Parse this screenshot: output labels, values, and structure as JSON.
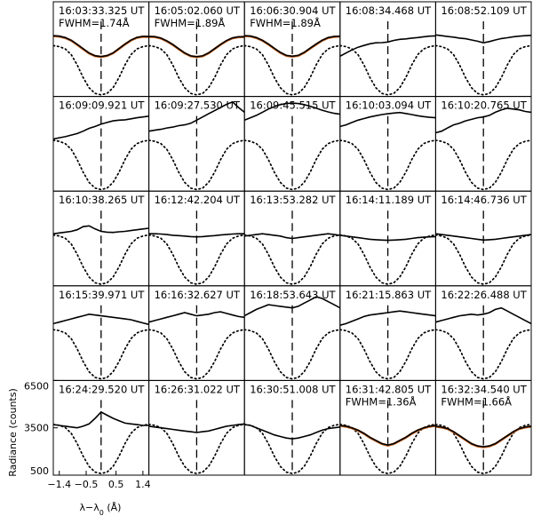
{
  "chart_data": {
    "type": "line",
    "layout": "grid-5x5",
    "xlabel": "λ−λ",
    "xlabel_sub": "0",
    "xlabel_unit": " (Å)",
    "ylabel": "Radiance (counts)",
    "xlim": [
      -1.6,
      1.6
    ],
    "ylim": [
      500,
      6500
    ],
    "xtick_labels": [
      "−1.4",
      "−0.5",
      "0.5",
      "1.4"
    ],
    "xtick_values": [
      -1.4,
      -0.5,
      0.5,
      1.4
    ],
    "ytick_labels": [
      "6500",
      "3500",
      "500"
    ],
    "ytick_values": [
      6500,
      3500,
      500
    ],
    "line_center": 0,
    "colors": {
      "observed": "#000000",
      "fit": "#c8641e",
      "reference": "#000000",
      "center": "#000000"
    },
    "reference_profile": {
      "x": [
        -1.6,
        -1.4,
        -1.2,
        -1.0,
        -0.8,
        -0.6,
        -0.4,
        -0.2,
        0.0,
        0.2,
        0.4,
        0.6,
        0.8,
        1.0,
        1.2,
        1.4,
        1.6
      ],
      "y": [
        3720,
        3660,
        3510,
        3150,
        2500,
        1700,
        1050,
        690,
        600,
        690,
        1050,
        1700,
        2500,
        3150,
        3510,
        3660,
        3720
      ]
    },
    "panels": [
      {
        "time": "16:03:33.325 UT",
        "fwhm": "FWHM=1.74Å",
        "fit": true,
        "x": [
          -1.6,
          -1.4,
          -1.2,
          -1.0,
          -0.8,
          -0.6,
          -0.4,
          -0.2,
          0.0,
          0.2,
          0.4,
          0.6,
          0.8,
          1.0,
          1.2,
          1.4,
          1.6
        ],
        "y": [
          4350,
          4320,
          4230,
          4060,
          3800,
          3520,
          3250,
          3080,
          3030,
          3090,
          3260,
          3540,
          3820,
          4070,
          4240,
          4310,
          4300
        ]
      },
      {
        "time": "16:05:02.060 UT",
        "fwhm": "FWHM=1.89Å",
        "fit": true,
        "x": [
          -1.6,
          -1.4,
          -1.2,
          -1.0,
          -0.8,
          -0.6,
          -0.4,
          -0.2,
          0.0,
          0.2,
          0.4,
          0.6,
          0.8,
          1.0,
          1.2,
          1.4,
          1.6
        ],
        "y": [
          4300,
          4290,
          4200,
          4020,
          3790,
          3520,
          3260,
          3070,
          3020,
          3070,
          3260,
          3530,
          3800,
          4040,
          4210,
          4280,
          4290
        ]
      },
      {
        "time": "16:06:30.904 UT",
        "fwhm": "FWHM=1.89Å",
        "fit": true,
        "x": [
          -1.6,
          -1.4,
          -1.2,
          -1.0,
          -0.8,
          -0.6,
          -0.4,
          -0.2,
          0.0,
          0.2,
          0.4,
          0.6,
          0.8,
          1.0,
          1.2,
          1.4,
          1.6
        ],
        "y": [
          4350,
          4330,
          4230,
          4060,
          3820,
          3550,
          3290,
          3100,
          3050,
          3100,
          3290,
          3560,
          3820,
          4060,
          4230,
          4300,
          4320
        ]
      },
      {
        "time": "16:08:34.468 UT",
        "fwhm": "",
        "fit": false,
        "x": [
          -1.6,
          -1.4,
          -1.2,
          -1.0,
          -0.8,
          -0.6,
          -0.4,
          -0.2,
          0.0,
          0.2,
          0.4,
          0.6,
          0.8,
          1.0,
          1.2,
          1.4,
          1.6
        ],
        "y": [
          3050,
          3250,
          3450,
          3620,
          3730,
          3840,
          3900,
          3910,
          3950,
          4050,
          4120,
          4150,
          4200,
          4230,
          4280,
          4320,
          4340
        ]
      },
      {
        "time": "16:08:52.109 UT",
        "fwhm": "",
        "fit": false,
        "x": [
          -1.6,
          -1.4,
          -1.2,
          -1.0,
          -0.8,
          -0.6,
          -0.4,
          -0.2,
          0.0,
          0.2,
          0.4,
          0.6,
          0.8,
          1.0,
          1.2,
          1.4,
          1.6
        ],
        "y": [
          4400,
          4350,
          4300,
          4260,
          4200,
          4160,
          4080,
          4000,
          3900,
          3980,
          4080,
          4170,
          4220,
          4280,
          4320,
          4350,
          4370
        ]
      },
      {
        "time": "16:09:09.921 UT",
        "fwhm": "",
        "fit": false,
        "x": [
          -1.6,
          -1.4,
          -1.2,
          -1.0,
          -0.8,
          -0.6,
          -0.4,
          -0.2,
          0.0,
          0.2,
          0.4,
          0.6,
          0.8,
          1.0,
          1.2,
          1.4,
          1.6
        ],
        "y": [
          3800,
          3880,
          3950,
          4050,
          4150,
          4300,
          4480,
          4600,
          4750,
          4850,
          4950,
          5000,
          5020,
          5080,
          5150,
          5200,
          5250
        ]
      },
      {
        "time": "16:09:27.530 UT",
        "fwhm": "",
        "fit": false,
        "x": [
          -1.6,
          -1.4,
          -1.2,
          -1.0,
          -0.8,
          -0.6,
          -0.4,
          -0.2,
          0.0,
          0.2,
          0.4,
          0.6,
          0.8,
          1.0,
          1.2,
          1.4,
          1.6
        ],
        "y": [
          4300,
          4360,
          4420,
          4500,
          4560,
          4650,
          4700,
          4800,
          5000,
          5200,
          5400,
          5600,
          5800,
          6000,
          6150,
          5800,
          5500
        ]
      },
      {
        "time": "16:09:45.515 UT",
        "fwhm": "",
        "fit": false,
        "x": [
          -1.6,
          -1.4,
          -1.2,
          -1.0,
          -0.8,
          -0.6,
          -0.4,
          -0.2,
          0.0,
          0.2,
          0.4,
          0.6,
          0.8,
          1.0,
          1.2,
          1.4,
          1.6
        ],
        "y": [
          5000,
          5150,
          5300,
          5500,
          5700,
          5850,
          5980,
          6050,
          6080,
          6050,
          5980,
          5880,
          5760,
          5630,
          5520,
          5430,
          5380
        ]
      },
      {
        "time": "16:10:03.094 UT",
        "fwhm": "",
        "fit": false,
        "x": [
          -1.6,
          -1.4,
          -1.2,
          -1.0,
          -0.8,
          -0.6,
          -0.4,
          -0.2,
          0.0,
          0.2,
          0.4,
          0.6,
          0.8,
          1.0,
          1.2,
          1.4,
          1.6
        ],
        "y": [
          4600,
          4700,
          4850,
          5000,
          5100,
          5200,
          5280,
          5350,
          5400,
          5450,
          5480,
          5420,
          5350,
          5280,
          5220,
          5180,
          5150
        ]
      },
      {
        "time": "16:10:20.765 UT",
        "fwhm": "",
        "fit": false,
        "x": [
          -1.6,
          -1.4,
          -1.2,
          -1.0,
          -0.8,
          -0.6,
          -0.4,
          -0.2,
          0.0,
          0.2,
          0.4,
          0.6,
          0.8,
          1.0,
          1.2,
          1.4,
          1.6
        ],
        "y": [
          4200,
          4300,
          4500,
          4700,
          4800,
          4950,
          5050,
          5150,
          5200,
          5300,
          5500,
          5650,
          5750,
          5700,
          5650,
          5550,
          5500
        ]
      },
      {
        "time": "16:10:38.265 UT",
        "fwhm": "",
        "fit": false,
        "x": [
          -1.6,
          -1.4,
          -1.2,
          -1.0,
          -0.8,
          -0.6,
          -0.4,
          -0.2,
          0.0,
          0.2,
          0.4,
          0.6,
          0.8,
          1.0,
          1.2,
          1.4,
          1.6
        ],
        "y": [
          3800,
          3850,
          3900,
          3950,
          4050,
          4250,
          4300,
          4100,
          3950,
          3900,
          3880,
          3920,
          3950,
          4000,
          4050,
          4100,
          4150
        ]
      },
      {
        "time": "16:12:42.204 UT",
        "fwhm": "",
        "fit": false,
        "x": [
          -1.6,
          -1.4,
          -1.2,
          -1.0,
          -0.8,
          -0.6,
          -0.4,
          -0.2,
          0.0,
          0.2,
          0.4,
          0.6,
          0.8,
          1.0,
          1.2,
          1.4,
          1.6
        ],
        "y": [
          3800,
          3800,
          3780,
          3750,
          3700,
          3680,
          3650,
          3620,
          3600,
          3620,
          3650,
          3680,
          3720,
          3750,
          3780,
          3800,
          3800
        ]
      },
      {
        "time": "16:13:53.282 UT",
        "fwhm": "",
        "fit": false,
        "x": [
          -1.6,
          -1.4,
          -1.2,
          -1.0,
          -0.8,
          -0.6,
          -0.4,
          -0.2,
          0.0,
          0.2,
          0.4,
          0.6,
          0.8,
          1.0,
          1.2,
          1.4,
          1.6
        ],
        "y": [
          3650,
          3700,
          3750,
          3800,
          3750,
          3700,
          3650,
          3550,
          3500,
          3550,
          3600,
          3650,
          3700,
          3750,
          3800,
          3750,
          3700
        ]
      },
      {
        "time": "16:14:11.189 UT",
        "fwhm": "",
        "fit": false,
        "x": [
          -1.6,
          -1.4,
          -1.2,
          -1.0,
          -0.8,
          -0.6,
          -0.4,
          -0.2,
          0.0,
          0.2,
          0.4,
          0.6,
          0.8,
          1.0,
          1.2,
          1.4,
          1.6
        ],
        "y": [
          3700,
          3650,
          3600,
          3550,
          3500,
          3450,
          3420,
          3400,
          3380,
          3400,
          3420,
          3450,
          3500,
          3550,
          3580,
          3600,
          3620
        ]
      },
      {
        "time": "16:14:46.736 UT",
        "fwhm": "",
        "fit": false,
        "x": [
          -1.6,
          -1.4,
          -1.2,
          -1.0,
          -0.8,
          -0.6,
          -0.4,
          -0.2,
          0.0,
          0.2,
          0.4,
          0.6,
          0.8,
          1.0,
          1.2,
          1.4,
          1.6
        ],
        "y": [
          3800,
          3750,
          3700,
          3650,
          3600,
          3550,
          3500,
          3450,
          3400,
          3420,
          3450,
          3500,
          3550,
          3600,
          3650,
          3700,
          3750
        ]
      },
      {
        "time": "16:15:39.971 UT",
        "fwhm": "",
        "fit": false,
        "x": [
          -1.6,
          -1.4,
          -1.2,
          -1.0,
          -0.8,
          -0.6,
          -0.4,
          -0.2,
          0.0,
          0.2,
          0.4,
          0.6,
          0.8,
          1.0,
          1.2,
          1.4,
          1.6
        ],
        "y": [
          4100,
          4200,
          4300,
          4400,
          4500,
          4600,
          4700,
          4650,
          4600,
          4550,
          4500,
          4450,
          4400,
          4350,
          4250,
          4150,
          4050
        ]
      },
      {
        "time": "16:16:32.627 UT",
        "fwhm": "",
        "fit": false,
        "x": [
          -1.6,
          -1.4,
          -1.2,
          -1.0,
          -0.8,
          -0.6,
          -0.4,
          -0.2,
          0.0,
          0.2,
          0.4,
          0.6,
          0.8,
          1.0,
          1.2,
          1.4,
          1.6
        ],
        "y": [
          4200,
          4300,
          4400,
          4500,
          4600,
          4700,
          4800,
          4700,
          4600,
          4650,
          4700,
          4800,
          4850,
          4750,
          4650,
          4550,
          4500
        ]
      },
      {
        "time": "16:18:53.643 UT",
        "fwhm": "",
        "fit": false,
        "x": [
          -1.6,
          -1.4,
          -1.2,
          -1.0,
          -0.8,
          -0.6,
          -0.4,
          -0.2,
          0.0,
          0.2,
          0.4,
          0.6,
          0.8,
          1.0,
          1.2,
          1.4,
          1.6
        ],
        "y": [
          4600,
          4800,
          5000,
          5150,
          5300,
          5250,
          5200,
          5150,
          5100,
          5200,
          5400,
          5600,
          5800,
          5700,
          5500,
          5300,
          5100
        ]
      },
      {
        "time": "16:21:15.863 UT",
        "fwhm": "",
        "fit": false,
        "x": [
          -1.6,
          -1.4,
          -1.2,
          -1.0,
          -0.8,
          -0.6,
          -0.4,
          -0.2,
          0.0,
          0.2,
          0.4,
          0.6,
          0.8,
          1.0,
          1.2,
          1.4,
          1.6
        ],
        "y": [
          4000,
          4100,
          4250,
          4400,
          4550,
          4650,
          4700,
          4750,
          4800,
          4850,
          4900,
          4850,
          4800,
          4750,
          4700,
          4650,
          4600
        ]
      },
      {
        "time": "16:22:26.488 UT",
        "fwhm": "",
        "fit": false,
        "x": [
          -1.6,
          -1.4,
          -1.2,
          -1.0,
          -0.8,
          -0.6,
          -0.4,
          -0.2,
          0.0,
          0.2,
          0.4,
          0.6,
          0.8,
          1.0,
          1.2,
          1.4,
          1.6
        ],
        "y": [
          4200,
          4300,
          4400,
          4500,
          4600,
          4650,
          4700,
          4650,
          4700,
          4800,
          5000,
          5100,
          4900,
          4700,
          4500,
          4300,
          4100
        ]
      },
      {
        "time": "16:24:29.520 UT",
        "fwhm": "",
        "fit": false,
        "x": [
          -1.6,
          -1.4,
          -1.2,
          -1.0,
          -0.8,
          -0.6,
          -0.4,
          -0.2,
          0.0,
          0.2,
          0.4,
          0.6,
          0.8,
          1.0,
          1.2,
          1.4,
          1.6
        ],
        "y": [
          3700,
          3650,
          3600,
          3550,
          3500,
          3600,
          3750,
          4100,
          4500,
          4300,
          4100,
          3950,
          3800,
          3750,
          3700,
          3650,
          3650
        ]
      },
      {
        "time": "16:26:31.022 UT",
        "fwhm": "",
        "fit": false,
        "x": [
          -1.6,
          -1.4,
          -1.2,
          -1.0,
          -0.8,
          -0.6,
          -0.4,
          -0.2,
          0.0,
          0.2,
          0.4,
          0.6,
          0.8,
          1.0,
          1.2,
          1.4,
          1.6
        ],
        "y": [
          3600,
          3550,
          3500,
          3450,
          3400,
          3350,
          3300,
          3250,
          3200,
          3250,
          3300,
          3400,
          3500,
          3600,
          3650,
          3700,
          3750
        ]
      },
      {
        "time": "16:30:51.008 UT",
        "fwhm": "",
        "fit": false,
        "x": [
          -1.6,
          -1.4,
          -1.2,
          -1.0,
          -0.8,
          -0.6,
          -0.4,
          -0.2,
          0.0,
          0.2,
          0.4,
          0.6,
          0.8,
          1.0,
          1.2,
          1.4,
          1.6
        ],
        "y": [
          3700,
          3650,
          3500,
          3350,
          3200,
          3050,
          2950,
          2850,
          2800,
          2850,
          2950,
          3050,
          3200,
          3350,
          3450,
          3500,
          3550
        ]
      },
      {
        "time": "16:31:42.805 UT",
        "fwhm": "FWHM=1.36Å",
        "fit": true,
        "x": [
          -1.6,
          -1.4,
          -1.2,
          -1.0,
          -0.8,
          -0.6,
          -0.4,
          -0.2,
          0.0,
          0.2,
          0.4,
          0.6,
          0.8,
          1.0,
          1.2,
          1.4,
          1.6
        ],
        "y": [
          3650,
          3600,
          3500,
          3350,
          3150,
          2900,
          2700,
          2500,
          2400,
          2500,
          2700,
          2900,
          3150,
          3350,
          3500,
          3600,
          3650
        ]
      },
      {
        "time": "16:32:34.540 UT",
        "fwhm": "FWHM=1.66Å",
        "fit": true,
        "x": [
          -1.6,
          -1.4,
          -1.2,
          -1.0,
          -0.8,
          -0.6,
          -0.4,
          -0.2,
          0.0,
          0.2,
          0.4,
          0.6,
          0.8,
          1.0,
          1.2,
          1.4,
          1.6
        ],
        "y": [
          3600,
          3550,
          3450,
          3250,
          3000,
          2750,
          2500,
          2350,
          2300,
          2350,
          2500,
          2750,
          3000,
          3250,
          3450,
          3550,
          3600
        ]
      }
    ]
  }
}
